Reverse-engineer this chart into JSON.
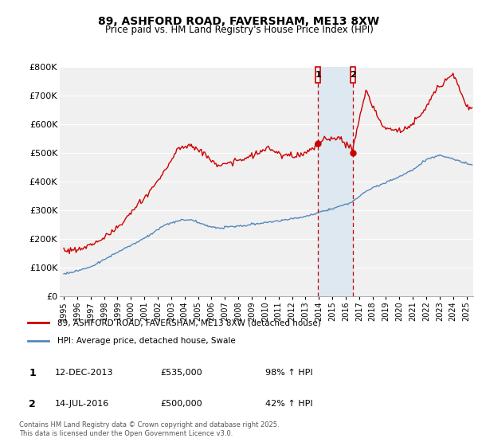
{
  "title": "89, ASHFORD ROAD, FAVERSHAM, ME13 8XW",
  "subtitle": "Price paid vs. HM Land Registry's House Price Index (HPI)",
  "ylim": [
    0,
    800000
  ],
  "yticks": [
    0,
    100000,
    200000,
    300000,
    400000,
    500000,
    600000,
    700000,
    800000
  ],
  "ytick_labels": [
    "£0",
    "£100K",
    "£200K",
    "£300K",
    "£400K",
    "£500K",
    "£600K",
    "£700K",
    "£800K"
  ],
  "background_color": "#ffffff",
  "plot_background": "#f0f0f0",
  "grid_color": "#ffffff",
  "red_line_color": "#cc0000",
  "blue_line_color": "#5588bb",
  "shade_color": "#dde8f0",
  "event1_year": 2013.95,
  "event2_year": 2016.54,
  "event1_price": 535000,
  "event2_price": 500000,
  "event1_date_str": "12-DEC-2013",
  "event2_date_str": "14-JUL-2016",
  "event1_hpi": "98% ↑ HPI",
  "event2_hpi": "42% ↑ HPI",
  "legend_red": "89, ASHFORD ROAD, FAVERSHAM, ME13 8XW (detached house)",
  "legend_blue": "HPI: Average price, detached house, Swale",
  "footer": "Contains HM Land Registry data © Crown copyright and database right 2025.\nThis data is licensed under the Open Government Licence v3.0.",
  "start_year": 1995,
  "end_year": 2025.5,
  "xtick_years": [
    1995,
    1996,
    1997,
    1998,
    1999,
    2000,
    2001,
    2002,
    2003,
    2004,
    2005,
    2006,
    2007,
    2008,
    2009,
    2010,
    2011,
    2012,
    2013,
    2014,
    2015,
    2016,
    2017,
    2018,
    2019,
    2020,
    2021,
    2022,
    2023,
    2024,
    2025
  ]
}
